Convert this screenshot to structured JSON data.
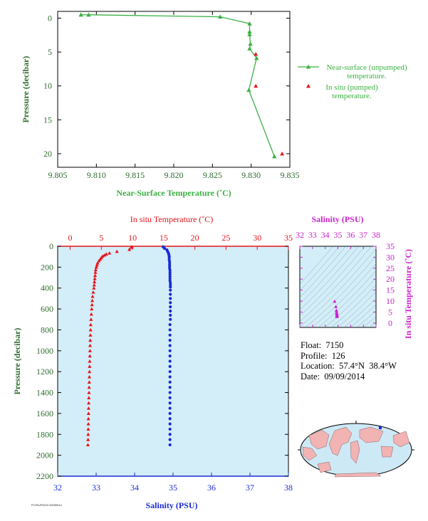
{
  "colors": {
    "green": "#3cb043",
    "axis_green": "#2e6b2e",
    "red": "#e8141c",
    "blue": "#1a2bd6",
    "magenta": "#cc22cc",
    "panel_bg": "#d3eef8",
    "land": "#f2b3b3",
    "ocean": "#cde9f6"
  },
  "info": {
    "float_line": "Float:  7150",
    "profile_line": "Profile:  126",
    "location_line": "Location:  57.4°N  38.4°W",
    "date_line": "Date:  09/09/2014"
  },
  "footer_code": "PLTBUF2024 20090914",
  "chart_data": [
    {
      "id": "near_surface",
      "type": "line",
      "xlabel": "Near-Surface Temperature (˚C)",
      "ylabel": "Pressure (decibar)",
      "xlim": [
        9.805,
        9.835
      ],
      "ylim": [
        22,
        -1
      ],
      "xticks": [
        "9.805",
        "9.810",
        "9.815",
        "9.820",
        "9.825",
        "9.830",
        "9.835"
      ],
      "yticks": [
        "0",
        "5",
        "10",
        "15",
        "20"
      ],
      "legend": [
        {
          "label_line1": "Near-surface (unpumped)",
          "label_line2": "temperature."
        },
        {
          "label_line1": "In situ (pumped)",
          "label_line2": "temperature."
        }
      ],
      "series": [
        {
          "name": "Near-surface (unpumped) temperature.",
          "x": [
            9.808,
            9.809,
            9.826,
            9.8298,
            9.8298,
            9.8298,
            9.8299,
            9.8298,
            9.8307,
            9.8297,
            9.833
          ],
          "y": [
            -0.5,
            -0.5,
            -0.2,
            0.8,
            2.0,
            2.4,
            3.8,
            4.5,
            5.9,
            10.6,
            20.4
          ]
        },
        {
          "name": "In situ (pumped) temperature.",
          "x": [
            9.8306,
            9.8306,
            9.834
          ],
          "y": [
            5.3,
            10.0,
            20.0
          ]
        }
      ]
    },
    {
      "id": "profile",
      "type": "scatter",
      "top_axis_label": "In situ Temperature (˚C)",
      "bottom_axis_label": "Salinity (PSU)",
      "ylabel": "Pressure (decibar)",
      "temp_lim": [
        -2,
        35
      ],
      "sal_lim": [
        32,
        38
      ],
      "ylim": [
        2200,
        0
      ],
      "temp_ticks": [
        "0",
        "5",
        "10",
        "15",
        "20",
        "25",
        "30",
        "35"
      ],
      "sal_ticks": [
        "32",
        "33",
        "34",
        "35",
        "36",
        "37",
        "38"
      ],
      "yticks": [
        "0",
        "200",
        "400",
        "600",
        "800",
        "1000",
        "1200",
        "1400",
        "1600",
        "1800",
        "2000",
        "2200"
      ],
      "temperature": {
        "pressure": [
          5,
          10,
          30,
          50,
          65,
          75,
          85,
          95,
          110,
          125,
          140,
          160,
          180,
          200,
          225,
          250,
          280,
          310,
          340,
          370,
          400,
          440,
          480,
          520,
          560,
          600,
          650,
          700,
          750,
          800,
          850,
          900,
          950,
          1000,
          1050,
          1100,
          1150,
          1200,
          1250,
          1300,
          1350,
          1400,
          1450,
          1500,
          1550,
          1600,
          1650,
          1700,
          1750,
          1800,
          1850,
          1900
        ],
        "values": [
          9.9,
          9.8,
          9.5,
          7.5,
          6.3,
          5.8,
          5.5,
          5.2,
          5.0,
          4.8,
          4.6,
          4.4,
          4.3,
          4.2,
          4.1,
          4.05,
          4.0,
          3.95,
          3.9,
          3.85,
          3.8,
          3.7,
          3.6,
          3.55,
          3.5,
          3.45,
          3.4,
          3.35,
          3.3,
          3.28,
          3.25,
          3.22,
          3.2,
          3.18,
          3.16,
          3.14,
          3.12,
          3.1,
          3.08,
          3.06,
          3.04,
          3.02,
          3.0,
          2.98,
          2.96,
          2.95,
          2.93,
          2.92,
          2.9,
          2.89,
          2.87,
          2.85
        ]
      },
      "salinity": {
        "pressure": [
          5,
          20,
          35,
          50,
          65,
          80,
          95,
          110,
          130,
          150,
          170,
          190,
          210,
          230,
          250,
          270,
          290,
          310,
          330,
          350,
          370,
          390,
          420,
          460,
          500,
          540,
          580,
          620,
          660,
          700,
          750,
          800,
          850,
          900,
          950,
          1000,
          1050,
          1100,
          1150,
          1200,
          1250,
          1300,
          1350,
          1400,
          1450,
          1500,
          1550,
          1600,
          1650,
          1700,
          1750,
          1800,
          1850,
          1900
        ],
        "values": [
          34.74,
          34.78,
          34.84,
          34.86,
          34.88,
          34.89,
          34.9,
          34.9,
          34.9,
          34.91,
          34.91,
          34.91,
          34.91,
          34.92,
          34.92,
          34.92,
          34.92,
          34.92,
          34.92,
          34.93,
          34.93,
          34.93,
          34.93,
          34.93,
          34.93,
          34.93,
          34.93,
          34.93,
          34.93,
          34.93,
          34.92,
          34.92,
          34.92,
          34.92,
          34.92,
          34.92,
          34.92,
          34.92,
          34.92,
          34.92,
          34.92,
          34.92,
          34.92,
          34.92,
          34.92,
          34.92,
          34.92,
          34.92,
          34.92,
          34.92,
          34.92,
          34.92,
          34.92,
          34.92
        ]
      }
    },
    {
      "id": "ts_diagram",
      "type": "scatter",
      "top_axis_label": "Salinity (PSU)",
      "right_axis_label": "In situ Temperature (˚C)",
      "xlim": [
        32,
        38
      ],
      "ylim": [
        -2,
        35
      ],
      "xticks": [
        "32",
        "33",
        "34",
        "35",
        "36",
        "37",
        "38"
      ],
      "yticks": [
        "0",
        "5",
        "10",
        "15",
        "20",
        "25",
        "30",
        "35"
      ],
      "points": {
        "salinity": [
          34.74,
          34.84,
          34.88,
          34.9,
          34.91,
          34.92,
          34.93,
          34.93,
          34.92,
          34.92
        ],
        "temperature": [
          9.9,
          7.5,
          5.8,
          5.0,
          4.4,
          4.0,
          3.6,
          3.3,
          3.1,
          2.9
        ]
      }
    }
  ]
}
